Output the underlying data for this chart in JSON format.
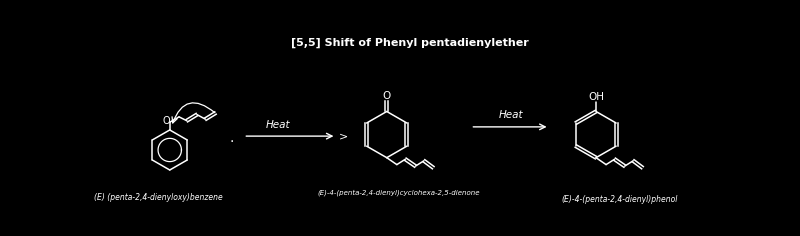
{
  "title": "[5,5] Shift of Phenyl pentadienylether",
  "title_fontsize": 8,
  "bg_color": "#000000",
  "line_color": "#ffffff",
  "label1": "(E) (penta-2,4-dienyloxy)benzene",
  "label2": "(E)-4-(penta-2,4-dienyl)cyclohexa-2,5-dienone",
  "label3": "(E)-4-(penta-2,4-dienyl)phenol",
  "heat_label": "Heat",
  "heat_label2": "Heat",
  "figsize": [
    8.0,
    2.36
  ],
  "dpi": 100
}
